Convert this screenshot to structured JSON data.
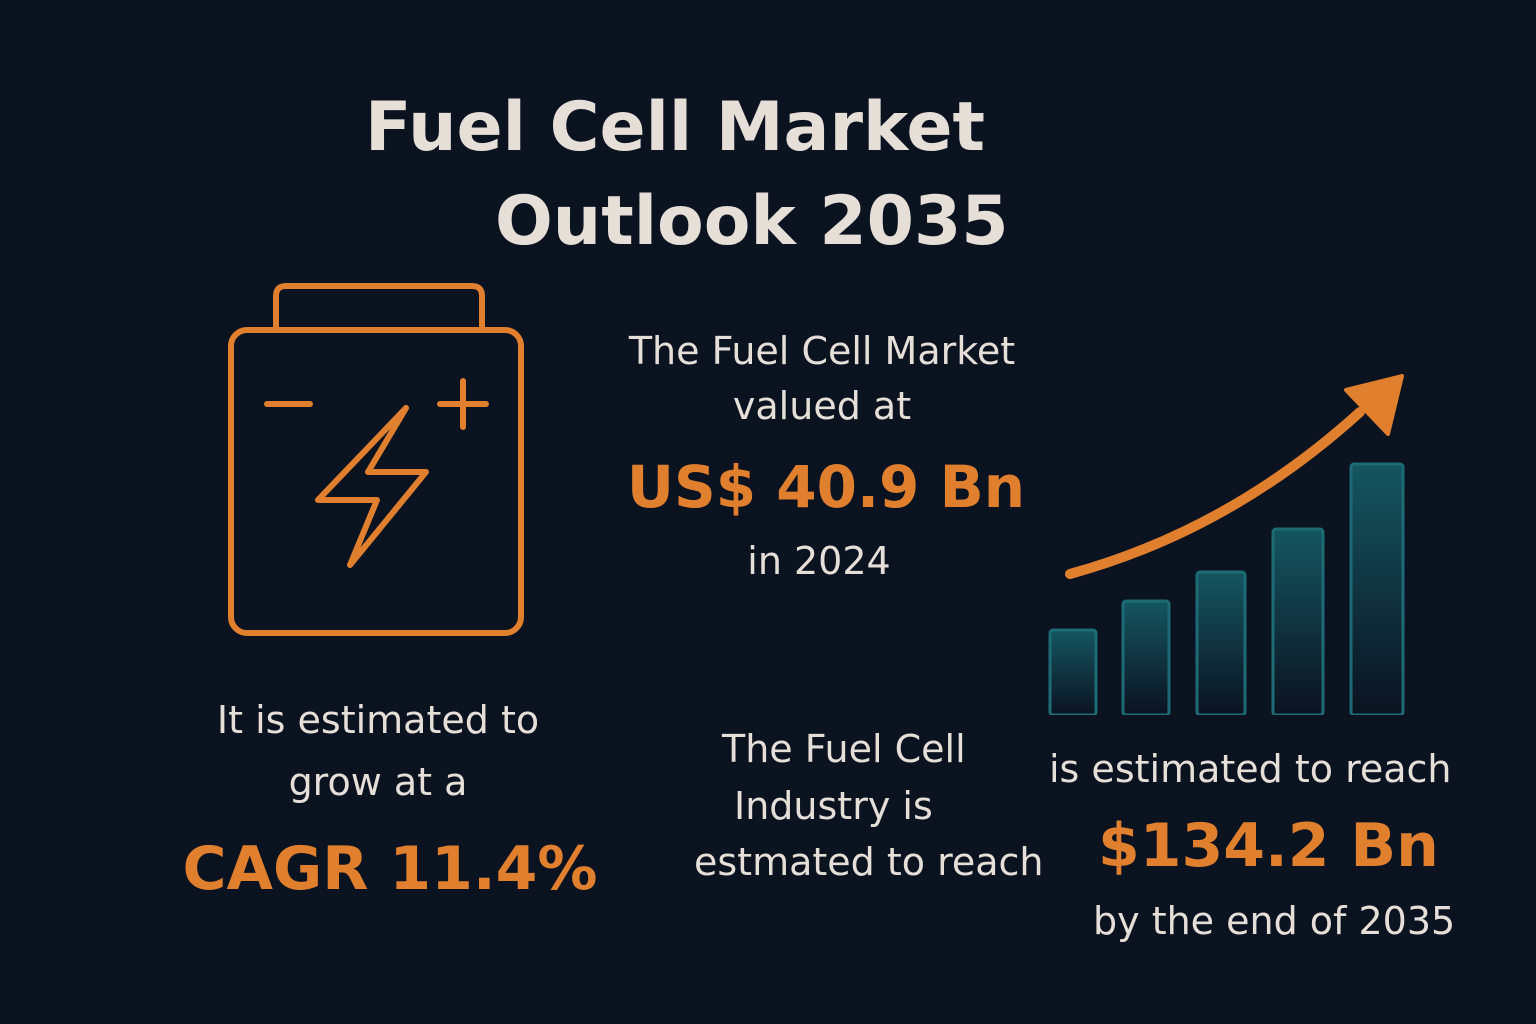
{
  "title": {
    "line1": "Fuel Cell Market",
    "line2": "Outlook 2035"
  },
  "colors": {
    "background": "#0b1220",
    "accent": "#e0802f",
    "text": "#e6dfd8",
    "bar": "#145660"
  },
  "icons": {
    "battery": "battery-bolt-icon",
    "growth": "growth-chart-icon"
  },
  "valuation": {
    "line1": "The Fuel Cell Market",
    "line2": "valued at",
    "value": "US$ 40.9 Bn",
    "year": "in 2024"
  },
  "growth": {
    "line1": "It is estimated to",
    "line2": "grow at a",
    "value": "CAGR 11.4%"
  },
  "industry": {
    "line1": "The Fuel Cell",
    "line2": "Industry is",
    "line3": "estmated to reach"
  },
  "forecast": {
    "line1": "is estimated to reach",
    "value": "$134.2 Bn",
    "line2": "by the end of 2035"
  }
}
